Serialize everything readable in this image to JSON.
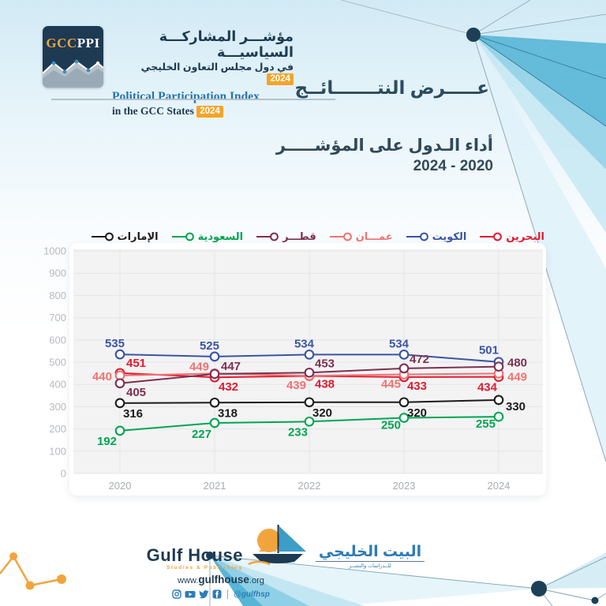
{
  "header": {
    "logo_gcc": "GCC",
    "logo_ppi": "PPI",
    "title_ar_line1": "مؤشـــر المشاركـــة السياسيـــة",
    "title_ar_line2": "في دول مجلس التعاون الخليجي",
    "badge_year_ar": "2024",
    "title_en_line1": "Political Participation Index",
    "title_en_line2": "in the GCC States",
    "badge_year_en": "2024"
  },
  "section": {
    "title_ar": "عـــــرض النتـــــــائــج"
  },
  "subtitle": {
    "line1_ar": "أداء الـدول على المؤشـــــر",
    "line2_years": "2024 - 2020"
  },
  "chart_data": {
    "type": "line",
    "x": [
      2020,
      2021,
      2022,
      2023,
      2024
    ],
    "xlabel": "",
    "ylabel": "",
    "ylim": [
      0,
      1000
    ],
    "ytick_step": 100,
    "grid": true,
    "legend_position": "top-right",
    "plot_bg": "#f3f3f4",
    "grid_color": "#e4e5e8",
    "series": [
      {
        "name_ar": "البحرين",
        "name_en": "bahrain",
        "color": "#e01b31",
        "values": [
          451,
          432,
          438,
          433,
          434
        ],
        "labels": [
          {
            "dx": 8,
            "dy": -8,
            "a": "start"
          },
          {
            "dx": 5,
            "dy": 17,
            "a": "start"
          },
          {
            "dx": 7,
            "dy": 15,
            "a": "start"
          },
          {
            "dx": 4,
            "dy": 16,
            "a": "start"
          },
          {
            "dx": -2,
            "dy": 18,
            "a": "end"
          }
        ]
      },
      {
        "name_ar": "الكويت",
        "name_en": "kuwait",
        "color": "#3a55a4",
        "values": [
          535,
          525,
          534,
          534,
          501
        ],
        "labels": [
          {
            "dx": 6,
            "dy": -9,
            "a": "end"
          },
          {
            "dx": 6,
            "dy": -9,
            "a": "end"
          },
          {
            "dx": 6,
            "dy": -9,
            "a": "end"
          },
          {
            "dx": 6,
            "dy": -9,
            "a": "end"
          },
          {
            "dx": 0,
            "dy": -10,
            "a": "end"
          }
        ]
      },
      {
        "name_ar": "عمـــان",
        "name_en": "oman",
        "color": "#f17272",
        "values": [
          440,
          449,
          439,
          445,
          449
        ],
        "labels": [
          {
            "dx": -10,
            "dy": 6,
            "a": "end"
          },
          {
            "dx": -7,
            "dy": -4,
            "a": "end"
          },
          {
            "dx": -4,
            "dy": 17,
            "a": "end"
          },
          {
            "dx": -4,
            "dy": 17,
            "a": "end"
          },
          {
            "dx": 11,
            "dy": 9,
            "a": "start"
          }
        ]
      },
      {
        "name_ar": "قطـــر",
        "name_en": "qatar",
        "color": "#7e3051",
        "values": [
          405,
          447,
          453,
          472,
          480
        ],
        "labels": [
          {
            "dx": 8,
            "dy": 16,
            "a": "start"
          },
          {
            "dx": 8,
            "dy": -5,
            "a": "start"
          },
          {
            "dx": 7,
            "dy": -7,
            "a": "start"
          },
          {
            "dx": 7,
            "dy": -7,
            "a": "start"
          },
          {
            "dx": 11,
            "dy": 0,
            "a": "start"
          }
        ]
      },
      {
        "name_ar": "السعودية",
        "name_en": "saudi",
        "color": "#00a651",
        "values": [
          192,
          227,
          233,
          250,
          255
        ],
        "labels": [
          {
            "dx": -4,
            "dy": 18,
            "a": "end"
          },
          {
            "dx": -4,
            "dy": 19,
            "a": "end"
          },
          {
            "dx": -2,
            "dy": 18,
            "a": "end"
          },
          {
            "dx": -4,
            "dy": 14,
            "a": "end"
          },
          {
            "dx": -4,
            "dy": 14,
            "a": "end"
          }
        ]
      },
      {
        "name_ar": "الإمارات",
        "name_en": "uae",
        "color": "#1c1c1c",
        "values": [
          316,
          318,
          320,
          320,
          330
        ],
        "labels": [
          {
            "dx": 4,
            "dy": 18,
            "a": "start"
          },
          {
            "dx": 4,
            "dy": 18,
            "a": "start"
          },
          {
            "dx": 4,
            "dy": 18,
            "a": "start"
          },
          {
            "dx": 4,
            "dy": 18,
            "a": "start"
          },
          {
            "dx": 9,
            "dy": 13,
            "a": "start"
          }
        ]
      }
    ]
  },
  "footer": {
    "name_en": "Gulf House",
    "tagline_en": "Studies & Publishing",
    "name_ar": "البيت الخليجي",
    "tagline_ar": "للــدراسات والنشــر",
    "url_www": "www.",
    "url_name": "gulfhouse",
    "url_tld": ".org",
    "social_handle": "@gulfhsp"
  },
  "colors": {
    "navy": "#1e3a53",
    "orange": "#f5a428",
    "blue_en_title": "#2575ad",
    "footer_blue": "#2d7cb5",
    "deco_teal": "#57b5d6"
  }
}
